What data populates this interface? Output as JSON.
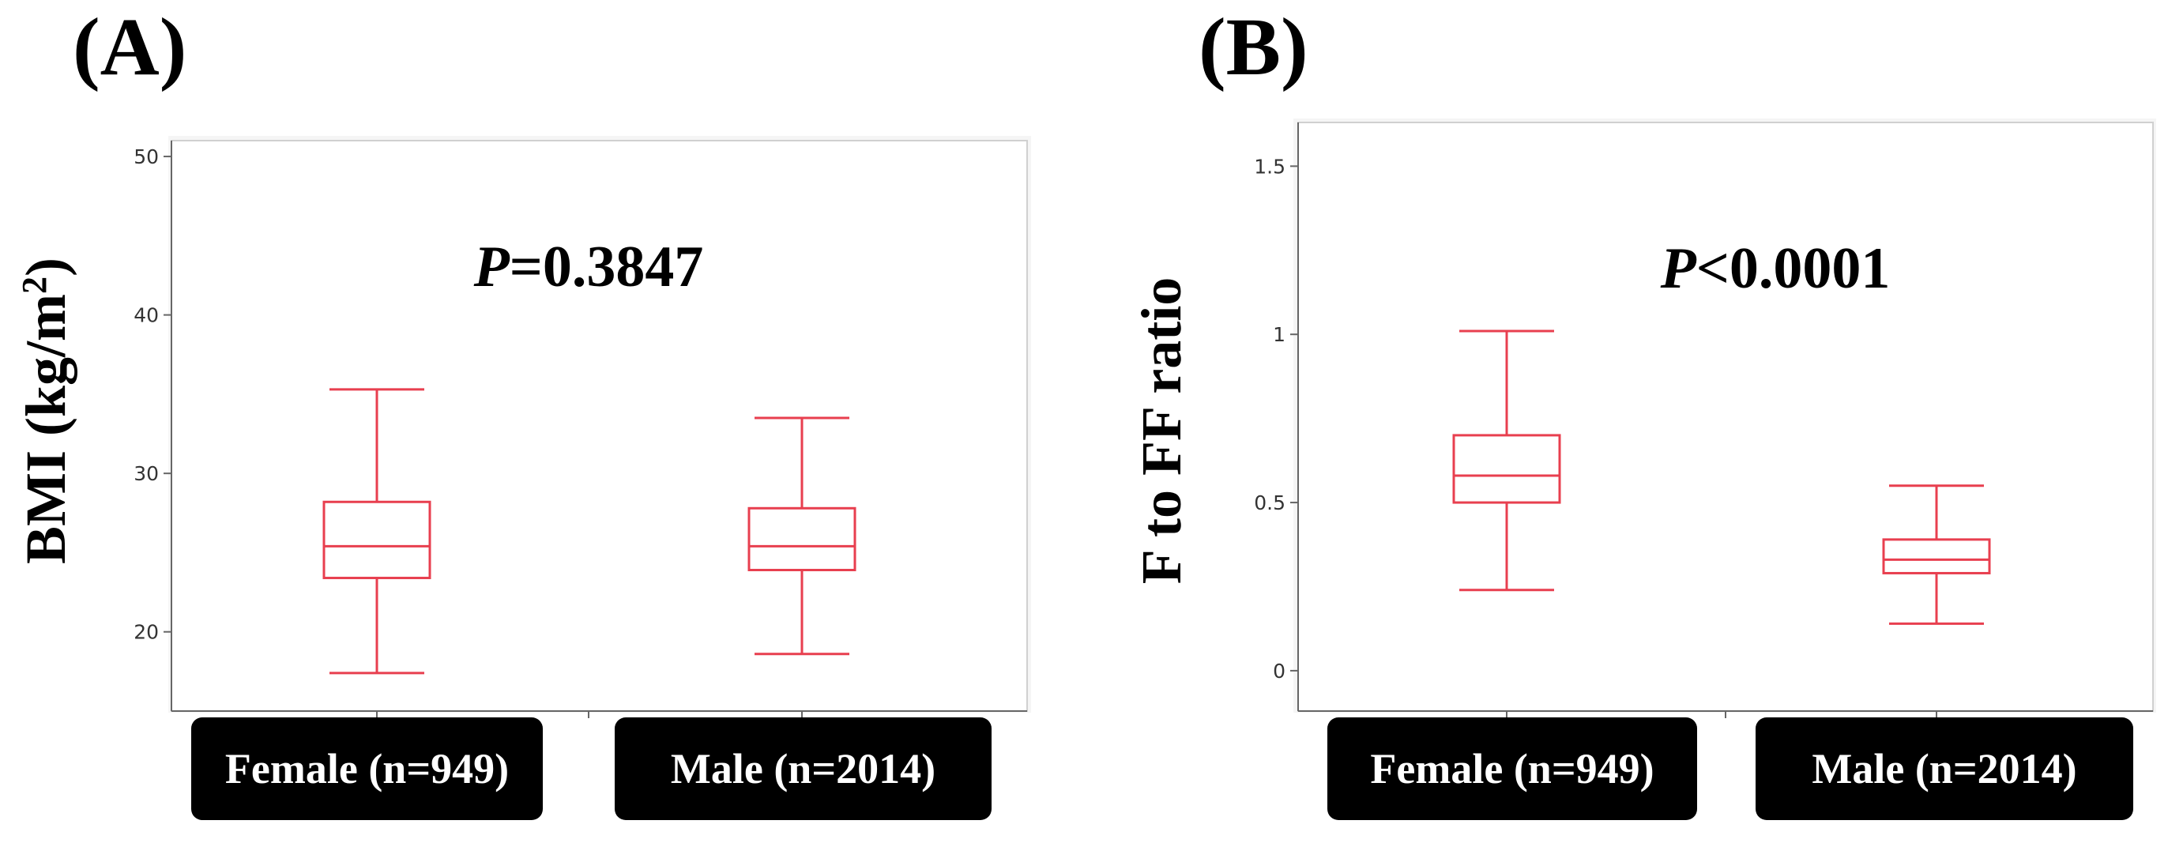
{
  "chart_data": [
    {
      "type": "boxplot",
      "panel_label": "(A)",
      "ylabel_main": "BMI (kg/m",
      "ylabel_sup": "2",
      "ylabel_close": ")",
      "ylim": [
        15,
        51
      ],
      "yticks": [
        20,
        30,
        40,
        50
      ],
      "annotation": {
        "italic": "P",
        "rest": "=0.3847"
      },
      "categories": [
        "Female (n=949)",
        "Male (n=2014)"
      ],
      "boxes": [
        {
          "name": "Female (n=949)",
          "whisker_low": 17.4,
          "q1": 23.4,
          "median": 25.4,
          "q3": 28.2,
          "whisker_high": 35.3
        },
        {
          "name": "Male (n=2014)",
          "whisker_low": 18.6,
          "q1": 23.9,
          "median": 25.4,
          "q3": 27.8,
          "whisker_high": 33.5
        }
      ],
      "box_color": "#e83f4f"
    },
    {
      "type": "boxplot",
      "panel_label": "(B)",
      "ylabel_main": "F to FF ratio",
      "ylim": [
        -0.12,
        1.63
      ],
      "yticks": [
        0,
        0.5,
        1,
        1.5
      ],
      "annotation": {
        "italic": "P",
        "rest": "<0.0001"
      },
      "categories": [
        "Female (n=949)",
        "Male (n=2014)"
      ],
      "boxes": [
        {
          "name": "Female (n=949)",
          "whisker_low": 0.24,
          "q1": 0.5,
          "median": 0.58,
          "q3": 0.7,
          "whisker_high": 1.01
        },
        {
          "name": "Male (n=2014)",
          "whisker_low": 0.14,
          "q1": 0.29,
          "median": 0.33,
          "q3": 0.39,
          "whisker_high": 0.55
        }
      ],
      "box_color": "#e83f4f"
    }
  ]
}
